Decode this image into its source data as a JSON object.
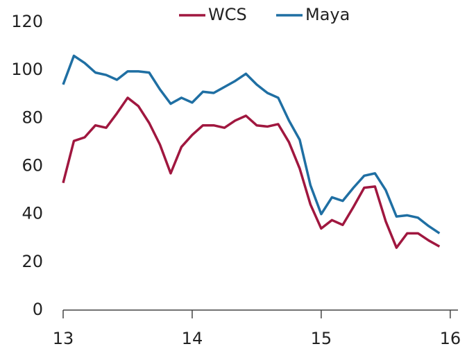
{
  "chart_data": {
    "type": "line",
    "x": [
      13,
      13.0833,
      13.1667,
      13.25,
      13.3333,
      13.4167,
      13.5,
      13.5833,
      13.6667,
      13.75,
      13.8333,
      13.9167,
      14,
      14.0833,
      14.1667,
      14.25,
      14.3333,
      14.4167,
      14.5,
      14.5833,
      14.6667,
      14.75,
      14.8333,
      14.9167,
      15,
      15.0833,
      15.1667,
      15.25,
      15.3333,
      15.4167,
      15.5,
      15.5833,
      15.6667,
      15.75,
      15.8333,
      15.9167
    ],
    "series": [
      {
        "name": "WCS",
        "color": "#a0173f",
        "values": [
          53,
          70.5,
          72,
          77,
          76,
          82,
          88.5,
          85,
          78,
          69,
          57,
          68,
          73,
          77,
          77,
          76,
          79,
          81,
          77,
          76.5,
          77.5,
          70,
          59,
          44,
          34,
          37.5,
          35.5,
          43,
          51,
          51.5,
          37,
          26,
          32,
          32,
          29,
          26.5
        ]
      },
      {
        "name": "Maya",
        "color": "#1f6fa3",
        "values": [
          94,
          106,
          103,
          99,
          98,
          96,
          99.5,
          99.5,
          99,
          92,
          86,
          88.5,
          86.5,
          91,
          90.5,
          93,
          95.5,
          98.5,
          94,
          90.5,
          88.5,
          79,
          71,
          52,
          40,
          47,
          45.5,
          51,
          56,
          57,
          50,
          39,
          39.5,
          38.5,
          35,
          32
        ]
      }
    ],
    "xlim": [
      13,
      16.06
    ],
    "xticks": [
      13,
      14,
      15,
      16
    ],
    "ylim": [
      0,
      120
    ],
    "yticks": [
      0,
      20,
      40,
      60,
      80,
      100,
      120
    ],
    "legend": "top"
  }
}
